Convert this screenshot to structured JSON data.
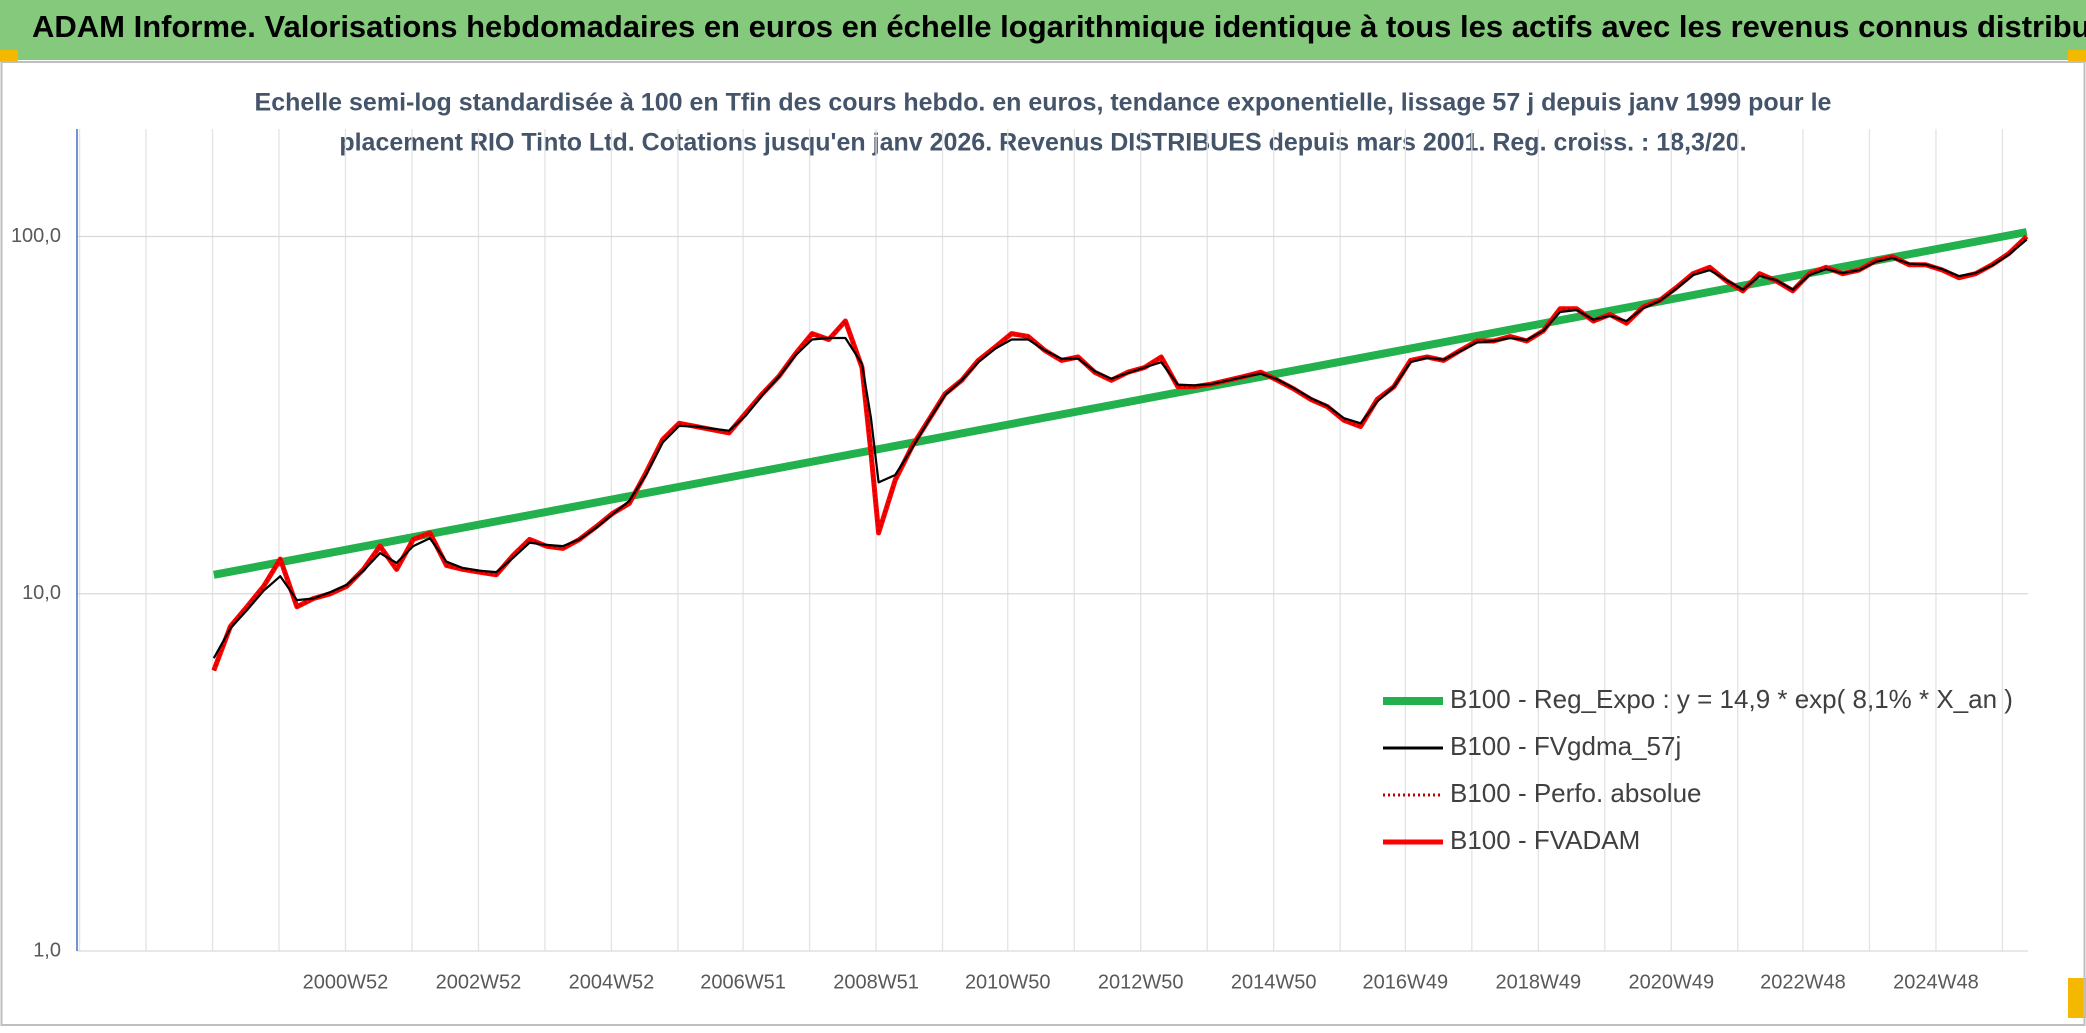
{
  "chart_data": {
    "type": "line",
    "title": "ADAM Informe. Valorisations hebdomadaires en euros en échelle logarithmique identique à tous les actifs avec les revenus connus distribués",
    "subtitle": [
      "Echelle semi-log standardisée à 100 en Tfin des cours hebdo. en euros, tendance exponentielle, lissage 57 j depuis janv 1999 pour le",
      "placement RIO Tinto Ltd. Cotations jusqu'en janv 2026. Revenus DISTRIBUES depuis mars 2001. Reg. croiss. : 18,3/20."
    ],
    "log_scale": true,
    "grid": true,
    "legend": "lower right",
    "ylim": [
      1,
      200
    ],
    "yticks": [
      {
        "value": 1,
        "label": "1,0"
      },
      {
        "value": 10,
        "label": "10,0"
      },
      {
        "value": 100,
        "label": "100,0"
      }
    ],
    "xlim": [
      "1996W50",
      "2026W16"
    ],
    "xticks": [
      "2000W52",
      "2002W52",
      "2004W52",
      "2006W51",
      "2008W51",
      "2010W50",
      "2012W50",
      "2014W50",
      "2016W49",
      "2018W49",
      "2020W49",
      "2022W48",
      "2024W48"
    ],
    "x": [
      "1999W01",
      "1999W14",
      "1999W27",
      "1999W40",
      "2000W01",
      "2000W14",
      "2000W27",
      "2000W40",
      "2001W01",
      "2001W14",
      "2001W27",
      "2001W40",
      "2002W01",
      "2002W14",
      "2002W27",
      "2002W40",
      "2003W01",
      "2003W14",
      "2003W27",
      "2003W40",
      "2004W01",
      "2004W14",
      "2004W27",
      "2004W40",
      "2005W01",
      "2005W14",
      "2005W27",
      "2005W40",
      "2006W01",
      "2006W14",
      "2006W27",
      "2006W40",
      "2007W01",
      "2007W14",
      "2007W27",
      "2007W40",
      "2008W01",
      "2008W14",
      "2008W27",
      "2008W40",
      "2008W47",
      "2009W01",
      "2009W14",
      "2009W27",
      "2009W40",
      "2010W01",
      "2010W14",
      "2010W27",
      "2010W40",
      "2011W01",
      "2011W14",
      "2011W27",
      "2011W40",
      "2012W01",
      "2012W14",
      "2012W27",
      "2012W40",
      "2013W01",
      "2013W14",
      "2013W27",
      "2013W40",
      "2014W01",
      "2014W14",
      "2014W27",
      "2014W40",
      "2015W01",
      "2015W14",
      "2015W27",
      "2015W40",
      "2016W01",
      "2016W14",
      "2016W27",
      "2016W40",
      "2017W01",
      "2017W14",
      "2017W27",
      "2017W40",
      "2018W01",
      "2018W14",
      "2018W27",
      "2018W40",
      "2019W01",
      "2019W14",
      "2019W27",
      "2019W40",
      "2020W01",
      "2020W14",
      "2020W27",
      "2020W40",
      "2021W01",
      "2021W14",
      "2021W27",
      "2021W40",
      "2022W01",
      "2022W14",
      "2022W27",
      "2022W40",
      "2023W01",
      "2023W14",
      "2023W27",
      "2023W40",
      "2024W01",
      "2024W14",
      "2024W27",
      "2024W40",
      "2025W01",
      "2025W14",
      "2025W27",
      "2025W40",
      "2026W01",
      "2026W15"
    ],
    "series": [
      {
        "name": "B100 - Reg_Expo : y = 14,9 * exp( 8,1% *  X_an )",
        "color": "#22b14c",
        "x": [
          "1999W01",
          "2026W15"
        ],
        "values": [
          11.3,
          103
        ]
      },
      {
        "name": "B100 - FVgdma_57j",
        "color": "#000000",
        "values": [
          6.6,
          8.0,
          9.0,
          10.2,
          11.2,
          9.6,
          9.7,
          10.1,
          10.6,
          11.6,
          13,
          12.2,
          13.6,
          14.3,
          12.3,
          11.8,
          11.6,
          11.5,
          12.6,
          13.9,
          13.7,
          13.6,
          14.2,
          15.3,
          16.7,
          18.2,
          21.5,
          26.5,
          29.5,
          29.4,
          29,
          28.6,
          31.5,
          36,
          40.5,
          46.5,
          51.5,
          52,
          52,
          44,
          31,
          20.5,
          21.5,
          25.5,
          30.5,
          36,
          39.6,
          44.5,
          48.5,
          51.5,
          51.5,
          48,
          45.5,
          45.5,
          42,
          40,
          41.5,
          43,
          44.5,
          38.5,
          38.3,
          38.6,
          39.5,
          40.5,
          41.3,
          39.8,
          37.6,
          35.3,
          33.6,
          31,
          30,
          34.5,
          38,
          44.5,
          45.8,
          45.2,
          47.8,
          50.5,
          51,
          52,
          51.3,
          54.5,
          61.5,
          62.3,
          58.5,
          60,
          58,
          63,
          66,
          71.5,
          78,
          80.5,
          75.5,
          71,
          77.5,
          75.5,
          71,
          78,
          81,
          79,
          80.5,
          85,
          87,
          84,
          83.5,
          81,
          77.5,
          79,
          83,
          89,
          98
        ]
      },
      {
        "name": "B100 - Perfo. absolue",
        "color": "#c00000",
        "line_style": "dotted",
        "values": [
          6.1,
          8.1,
          9.2,
          10.5,
          12.5,
          9.2,
          9.7,
          10,
          10.5,
          11.7,
          13.6,
          11.7,
          14.2,
          14.8,
          12,
          11.7,
          11.5,
          11.3,
          12.8,
          14.2,
          13.6,
          13.4,
          14.2,
          15.4,
          16.8,
          17.9,
          21.8,
          27,
          30,
          29.4,
          28.8,
          28.2,
          32,
          36.3,
          40.6,
          47,
          53.5,
          51.5,
          58,
          43,
          24.8,
          14.8,
          20.8,
          25.8,
          30.6,
          36.3,
          39.6,
          45,
          49,
          53.5,
          52.5,
          48,
          45,
          46,
          41.7,
          39.6,
          41.7,
          43,
          46,
          38,
          38,
          38.6,
          39.6,
          40.6,
          41.7,
          39.6,
          37.4,
          35,
          33.4,
          30.6,
          29.4,
          35,
          38,
          45,
          46,
          45,
          48,
          51,
          51,
          52.5,
          51,
          54.5,
          62.8,
          62.8,
          58,
          60.5,
          57.2,
          63.5,
          66.3,
          72,
          78.7,
          82,
          75.2,
          70.5,
          78.7,
          75.2,
          70.5,
          78.7,
          82,
          78.7,
          80.6,
          85.6,
          87.8,
          83.4,
          83.4,
          80.6,
          76.7,
          78.7,
          83.4,
          89.6,
          100
        ]
      },
      {
        "name": "B100 - FVADAM",
        "color": "#ff0000",
        "values": [
          6.1,
          8.1,
          9.2,
          10.5,
          12.5,
          9.2,
          9.7,
          10,
          10.5,
          11.7,
          13.6,
          11.7,
          14.2,
          14.8,
          12,
          11.7,
          11.5,
          11.3,
          12.8,
          14.2,
          13.6,
          13.4,
          14.2,
          15.4,
          16.8,
          17.9,
          21.8,
          27,
          30,
          29.4,
          28.8,
          28.2,
          32,
          36.3,
          40.6,
          47,
          53.5,
          51.5,
          58,
          43,
          24.8,
          14.8,
          20.8,
          25.8,
          30.6,
          36.3,
          39.6,
          45,
          49,
          53.5,
          52.5,
          48,
          45,
          46,
          41.7,
          39.6,
          41.7,
          43,
          46,
          38,
          38,
          38.6,
          39.6,
          40.6,
          41.7,
          39.6,
          37.4,
          35,
          33.4,
          30.6,
          29.4,
          35,
          38,
          45,
          46,
          45,
          48,
          51,
          51,
          52.5,
          51,
          54.5,
          62.8,
          62.8,
          58,
          60.5,
          57.2,
          63.5,
          66.3,
          72,
          78.7,
          82,
          75.2,
          70.5,
          78.7,
          75.2,
          70.5,
          78.7,
          82,
          78.7,
          80.6,
          85.6,
          87.8,
          83.4,
          83.4,
          80.6,
          76.7,
          78.7,
          83.4,
          89.6,
          100
        ]
      }
    ]
  }
}
